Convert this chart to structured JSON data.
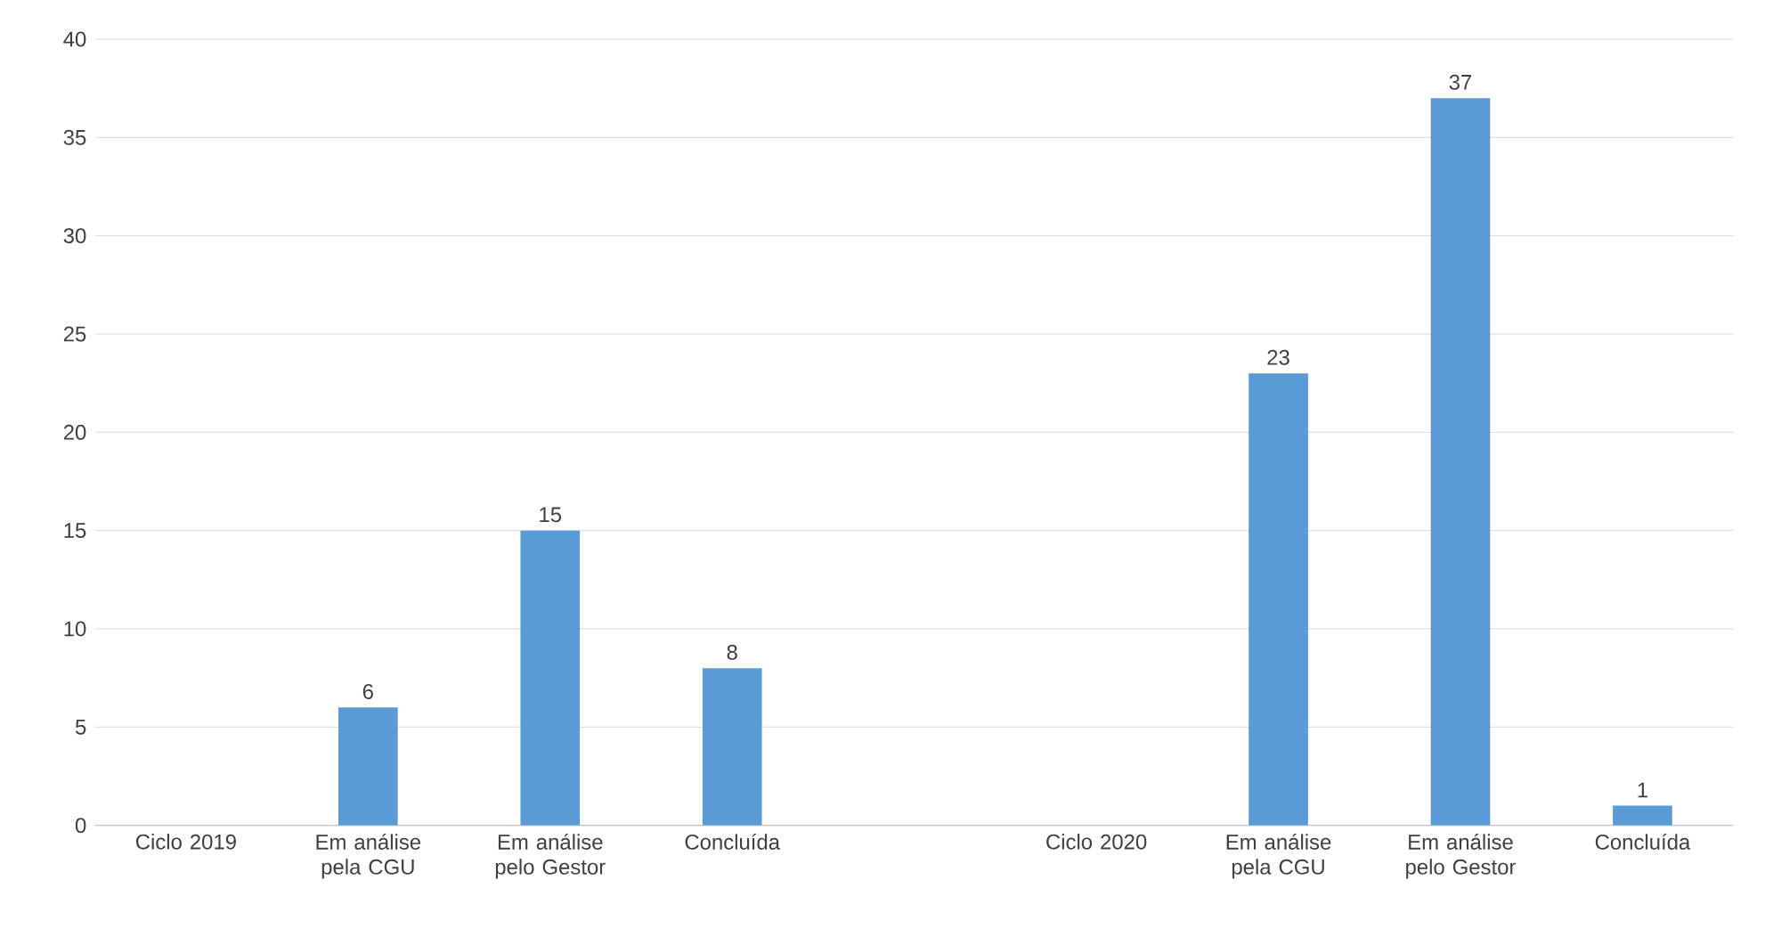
{
  "chart_data": {
    "type": "bar",
    "categories": [
      "Ciclo 2019",
      "Em análise pela CGU",
      "Em análise pelo Gestor",
      "Concluída",
      null,
      "Ciclo  2020",
      "Em análise pela CGU",
      "Em análise pelo Gestor",
      "Concluída"
    ],
    "values": [
      null,
      6,
      15,
      8,
      null,
      null,
      23,
      37,
      1
    ],
    "color": "#5b9bd5",
    "ylim": [
      0,
      40
    ],
    "yticks": [
      0,
      5,
      10,
      15,
      20,
      25,
      30,
      35,
      40
    ],
    "grid": "y",
    "data_labels": true
  }
}
